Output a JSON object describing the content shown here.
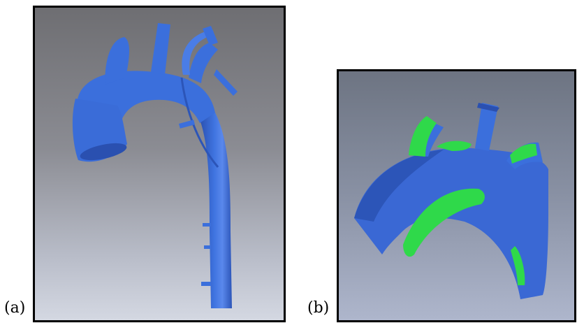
{
  "figure": {
    "panel_a_label": "(a)",
    "panel_b_label": "(b)"
  },
  "colors": {
    "vessel_blue": "#3b6fdc",
    "vessel_shadow": "#2a50b0",
    "vessel_highlight": "#6f98f0",
    "plaque_green": "#2fd94a",
    "border": "#000000"
  }
}
